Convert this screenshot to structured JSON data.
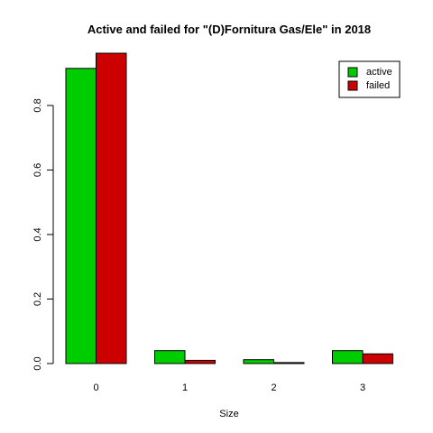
{
  "chart_data": {
    "type": "bar",
    "title": "Active and failed for \"(D)Fornitura Gas/Ele\" in 2018",
    "xlabel": "Size",
    "ylabel": "",
    "categories": [
      "0",
      "1",
      "2",
      "3"
    ],
    "series": [
      {
        "name": "active",
        "color": "#00cd00",
        "values": [
          0.915,
          0.04,
          0.012,
          0.04
        ]
      },
      {
        "name": "failed",
        "color": "#cd0000",
        "values": [
          0.962,
          0.01,
          0.003,
          0.03
        ]
      }
    ],
    "ylim": [
      0,
      0.962
    ],
    "yticks": [
      {
        "value": 0.0,
        "label": "0.0"
      },
      {
        "value": 0.2,
        "label": "0.2"
      },
      {
        "value": 0.4,
        "label": "0.4"
      },
      {
        "value": 0.6,
        "label": "0.6"
      },
      {
        "value": 0.8,
        "label": "0.8"
      }
    ],
    "grid": false,
    "legend": "top-right"
  }
}
